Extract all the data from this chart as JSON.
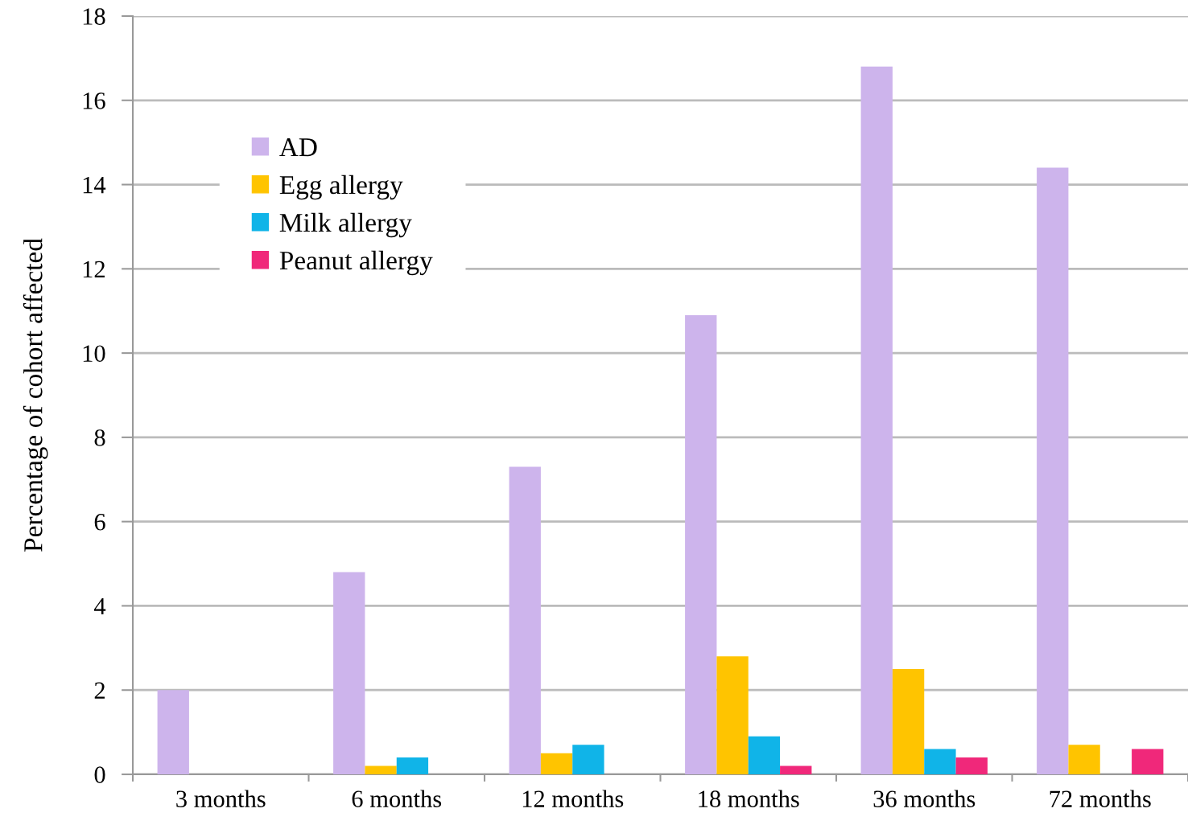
{
  "chart_data": {
    "type": "bar",
    "ylabel": "Percentage of cohort affected",
    "categories": [
      "3 months",
      "6 months",
      "12 months",
      "18 months",
      "36 months",
      "72 months"
    ],
    "series": [
      {
        "name": "AD",
        "color": "#cdb4ec",
        "values": [
          2.0,
          4.8,
          7.3,
          10.9,
          16.8,
          14.4
        ]
      },
      {
        "name": "Egg allergy",
        "color": "#ffc400",
        "values": [
          null,
          0.2,
          0.5,
          2.8,
          2.5,
          0.7
        ]
      },
      {
        "name": "Milk allergy",
        "color": "#10b4e8",
        "values": [
          null,
          0.4,
          0.7,
          0.9,
          0.6,
          null
        ]
      },
      {
        "name": "Peanut allergy",
        "color": "#f0287a",
        "values": [
          null,
          null,
          null,
          0.2,
          0.4,
          0.6
        ]
      }
    ],
    "ylim": [
      0,
      18
    ],
    "yticks": [
      0,
      2,
      4,
      6,
      8,
      10,
      12,
      14,
      16,
      18
    ],
    "grid": "y",
    "legend": "top left"
  }
}
